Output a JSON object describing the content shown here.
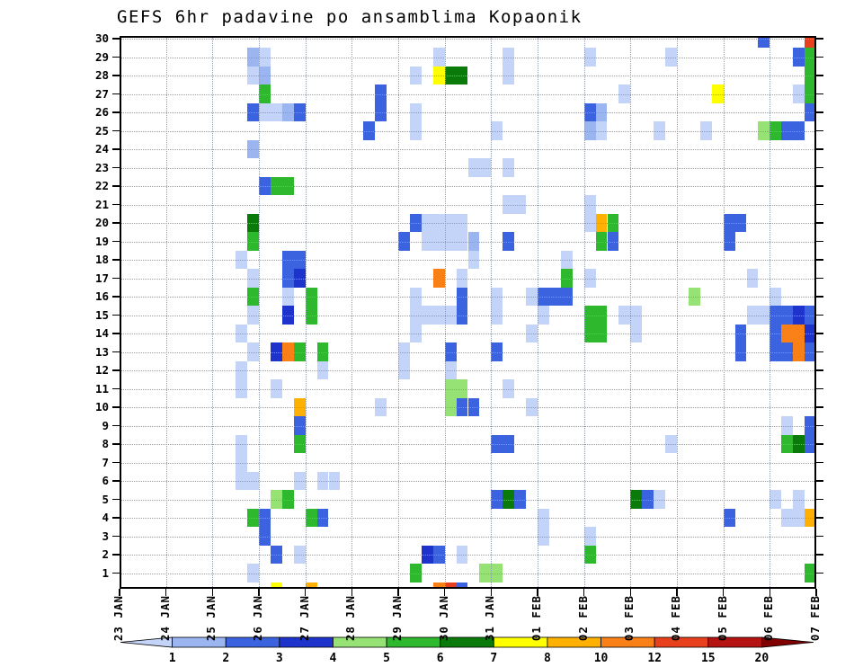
{
  "title": "GEFS 6hr padavine po ansamblima Kopaonik",
  "chart_data": {
    "type": "heatmap",
    "title": "GEFS 6hr padavine po ansamblima Kopaonik",
    "xlabel": "",
    "ylabel": "",
    "y_ticks": [
      1,
      2,
      3,
      4,
      5,
      6,
      7,
      8,
      9,
      10,
      11,
      12,
      13,
      14,
      15,
      16,
      17,
      18,
      19,
      20,
      21,
      22,
      23,
      24,
      25,
      26,
      27,
      28,
      29,
      30
    ],
    "x_ticks": [
      "23 JAN",
      "24 JAN",
      "25 JAN",
      "26 JAN",
      "27 JAN",
      "28 JAN",
      "29 JAN",
      "30 JAN",
      "31 JAN",
      "01 FEB",
      "02 FEB",
      "03 FEB",
      "04 FEB",
      "05 FEB",
      "06 FEB",
      "07 FEB"
    ],
    "slots_per_day": 4,
    "n_rows": 30,
    "grid": true,
    "legend_labels": [
      "1",
      "2",
      "3",
      "4",
      "5",
      "6",
      "7",
      "8",
      "10",
      "12",
      "15",
      "20"
    ],
    "palette": [
      "#c3d4f8",
      "#9bb5f0",
      "#3b63e0",
      "#1d33cc",
      "#97e275",
      "#2eb82e",
      "#0a7a0a",
      "#ffff00",
      "#ffb000",
      "#f88017",
      "#e8401c",
      "#b51212",
      "#800000"
    ],
    "cells": [
      [
        30,
        55,
        2
      ],
      [
        30,
        59,
        10
      ],
      [
        29,
        11,
        1
      ],
      [
        29,
        12,
        0
      ],
      [
        29,
        27,
        0
      ],
      [
        29,
        33,
        0
      ],
      [
        29,
        40,
        0
      ],
      [
        29,
        47,
        0
      ],
      [
        29,
        58,
        2
      ],
      [
        29,
        59,
        5
      ],
      [
        28,
        11,
        0
      ],
      [
        28,
        12,
        1
      ],
      [
        28,
        25,
        0
      ],
      [
        28,
        27,
        7
      ],
      [
        28,
        28,
        6
      ],
      [
        28,
        29,
        6
      ],
      [
        28,
        33,
        0
      ],
      [
        28,
        59,
        5
      ],
      [
        27,
        12,
        5
      ],
      [
        27,
        22,
        2
      ],
      [
        27,
        43,
        0
      ],
      [
        27,
        51,
        7
      ],
      [
        27,
        58,
        0
      ],
      [
        27,
        59,
        5
      ],
      [
        26,
        11,
        2
      ],
      [
        26,
        12,
        0
      ],
      [
        26,
        13,
        0
      ],
      [
        26,
        14,
        1
      ],
      [
        26,
        15,
        2
      ],
      [
        26,
        22,
        2
      ],
      [
        26,
        25,
        0
      ],
      [
        26,
        40,
        2
      ],
      [
        26,
        41,
        1
      ],
      [
        26,
        59,
        2
      ],
      [
        25,
        21,
        2
      ],
      [
        25,
        25,
        0
      ],
      [
        25,
        32,
        0
      ],
      [
        25,
        40,
        1
      ],
      [
        25,
        41,
        0
      ],
      [
        25,
        46,
        0
      ],
      [
        25,
        50,
        0
      ],
      [
        25,
        55,
        4
      ],
      [
        25,
        56,
        5
      ],
      [
        25,
        57,
        2
      ],
      [
        25,
        58,
        2
      ],
      [
        24,
        11,
        1
      ],
      [
        23,
        30,
        0
      ],
      [
        23,
        31,
        0
      ],
      [
        23,
        33,
        0
      ],
      [
        22,
        12,
        2
      ],
      [
        22,
        13,
        5
      ],
      [
        22,
        14,
        5
      ],
      [
        21,
        33,
        0
      ],
      [
        21,
        34,
        0
      ],
      [
        21,
        40,
        0
      ],
      [
        20,
        11,
        6
      ],
      [
        20,
        25,
        2
      ],
      [
        20,
        26,
        0
      ],
      [
        20,
        27,
        0
      ],
      [
        20,
        28,
        0
      ],
      [
        20,
        29,
        0
      ],
      [
        20,
        40,
        0
      ],
      [
        20,
        41,
        8
      ],
      [
        20,
        42,
        5
      ],
      [
        20,
        52,
        2
      ],
      [
        20,
        53,
        2
      ],
      [
        19,
        11,
        5
      ],
      [
        19,
        24,
        2
      ],
      [
        19,
        26,
        0
      ],
      [
        19,
        27,
        0
      ],
      [
        19,
        28,
        0
      ],
      [
        19,
        29,
        0
      ],
      [
        19,
        30,
        1
      ],
      [
        19,
        33,
        2
      ],
      [
        19,
        41,
        5
      ],
      [
        19,
        42,
        2
      ],
      [
        19,
        52,
        2
      ],
      [
        18,
        10,
        0
      ],
      [
        18,
        14,
        2
      ],
      [
        18,
        15,
        2
      ],
      [
        18,
        30,
        0
      ],
      [
        18,
        38,
        0
      ],
      [
        17,
        11,
        0
      ],
      [
        17,
        14,
        2
      ],
      [
        17,
        15,
        3
      ],
      [
        17,
        27,
        9
      ],
      [
        17,
        29,
        0
      ],
      [
        17,
        38,
        5
      ],
      [
        17,
        40,
        0
      ],
      [
        17,
        54,
        0
      ],
      [
        16,
        11,
        5
      ],
      [
        16,
        14,
        0
      ],
      [
        16,
        16,
        5
      ],
      [
        16,
        25,
        0
      ],
      [
        16,
        29,
        2
      ],
      [
        16,
        32,
        0
      ],
      [
        16,
        35,
        0
      ],
      [
        16,
        36,
        2
      ],
      [
        16,
        37,
        2
      ],
      [
        16,
        38,
        2
      ],
      [
        16,
        49,
        4
      ],
      [
        16,
        56,
        0
      ],
      [
        15,
        11,
        0
      ],
      [
        15,
        14,
        3
      ],
      [
        15,
        16,
        5
      ],
      [
        15,
        25,
        0
      ],
      [
        15,
        26,
        0
      ],
      [
        15,
        27,
        0
      ],
      [
        15,
        28,
        0
      ],
      [
        15,
        29,
        2
      ],
      [
        15,
        32,
        0
      ],
      [
        15,
        36,
        0
      ],
      [
        15,
        40,
        5
      ],
      [
        15,
        41,
        5
      ],
      [
        15,
        43,
        0
      ],
      [
        15,
        44,
        0
      ],
      [
        15,
        54,
        0
      ],
      [
        15,
        55,
        0
      ],
      [
        15,
        56,
        2
      ],
      [
        15,
        57,
        2
      ],
      [
        15,
        58,
        3
      ],
      [
        15,
        59,
        2
      ],
      [
        14,
        10,
        0
      ],
      [
        14,
        25,
        0
      ],
      [
        14,
        35,
        0
      ],
      [
        14,
        40,
        5
      ],
      [
        14,
        41,
        5
      ],
      [
        14,
        44,
        0
      ],
      [
        14,
        53,
        2
      ],
      [
        14,
        56,
        2
      ],
      [
        14,
        57,
        9
      ],
      [
        14,
        58,
        9
      ],
      [
        14,
        59,
        3
      ],
      [
        13,
        11,
        0
      ],
      [
        13,
        13,
        3
      ],
      [
        13,
        14,
        9
      ],
      [
        13,
        15,
        5
      ],
      [
        13,
        17,
        5
      ],
      [
        13,
        24,
        0
      ],
      [
        13,
        28,
        2
      ],
      [
        13,
        32,
        2
      ],
      [
        13,
        53,
        2
      ],
      [
        13,
        56,
        2
      ],
      [
        13,
        57,
        2
      ],
      [
        13,
        58,
        9
      ],
      [
        13,
        59,
        2
      ],
      [
        12,
        10,
        0
      ],
      [
        12,
        17,
        0
      ],
      [
        12,
        24,
        0
      ],
      [
        12,
        28,
        0
      ],
      [
        11,
        10,
        0
      ],
      [
        11,
        13,
        0
      ],
      [
        11,
        28,
        4
      ],
      [
        11,
        29,
        4
      ],
      [
        11,
        33,
        0
      ],
      [
        10,
        15,
        8
      ],
      [
        10,
        22,
        0
      ],
      [
        10,
        28,
        4
      ],
      [
        10,
        29,
        2
      ],
      [
        10,
        30,
        2
      ],
      [
        10,
        35,
        0
      ],
      [
        9,
        15,
        2
      ],
      [
        9,
        57,
        0
      ],
      [
        9,
        59,
        2
      ],
      [
        8,
        10,
        0
      ],
      [
        8,
        15,
        5
      ],
      [
        8,
        32,
        2
      ],
      [
        8,
        33,
        2
      ],
      [
        8,
        47,
        0
      ],
      [
        8,
        57,
        5
      ],
      [
        8,
        58,
        6
      ],
      [
        8,
        59,
        2
      ],
      [
        7,
        10,
        0
      ],
      [
        6,
        10,
        0
      ],
      [
        6,
        11,
        0
      ],
      [
        6,
        15,
        0
      ],
      [
        6,
        17,
        0
      ],
      [
        6,
        18,
        0
      ],
      [
        5,
        13,
        4
      ],
      [
        5,
        14,
        5
      ],
      [
        5,
        32,
        2
      ],
      [
        5,
        33,
        6
      ],
      [
        5,
        34,
        2
      ],
      [
        5,
        44,
        6
      ],
      [
        5,
        45,
        2
      ],
      [
        5,
        46,
        0
      ],
      [
        5,
        56,
        0
      ],
      [
        5,
        58,
        0
      ],
      [
        4,
        11,
        5
      ],
      [
        4,
        12,
        2
      ],
      [
        4,
        16,
        5
      ],
      [
        4,
        17,
        2
      ],
      [
        4,
        36,
        0
      ],
      [
        4,
        52,
        2
      ],
      [
        4,
        57,
        0
      ],
      [
        4,
        58,
        0
      ],
      [
        4,
        59,
        8
      ],
      [
        3,
        12,
        2
      ],
      [
        3,
        36,
        0
      ],
      [
        3,
        40,
        0
      ],
      [
        2,
        13,
        2
      ],
      [
        2,
        15,
        0
      ],
      [
        2,
        26,
        3
      ],
      [
        2,
        27,
        2
      ],
      [
        2,
        29,
        0
      ],
      [
        2,
        40,
        5
      ],
      [
        1,
        11,
        0
      ],
      [
        1,
        25,
        5
      ],
      [
        1,
        31,
        4
      ],
      [
        1,
        32,
        4
      ],
      [
        1,
        59,
        5
      ],
      [
        0,
        13,
        7
      ],
      [
        0,
        16,
        8
      ],
      [
        0,
        27,
        9
      ],
      [
        0,
        28,
        10
      ],
      [
        0,
        29,
        2
      ]
    ]
  }
}
